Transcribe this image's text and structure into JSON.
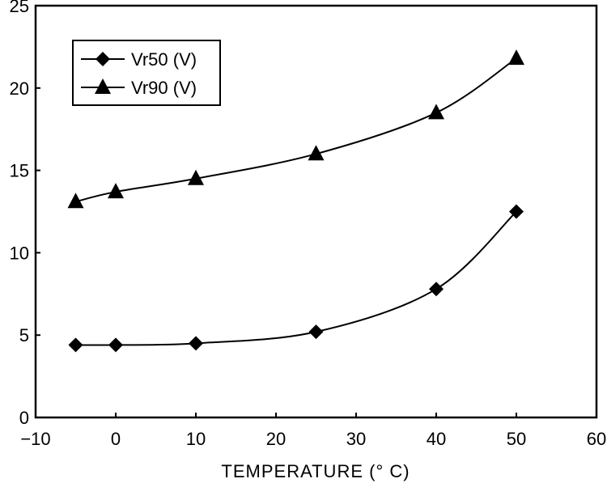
{
  "chart_data": {
    "type": "line",
    "title": "",
    "xlabel": "TEMPERATURE (° C)",
    "ylabel": "",
    "xlim": [
      -10,
      60
    ],
    "ylim": [
      0,
      25
    ],
    "xticks": [
      "−10",
      "0",
      "10",
      "20",
      "30",
      "40",
      "50",
      "60"
    ],
    "xtick_values": [
      -10,
      0,
      10,
      20,
      30,
      40,
      50,
      60
    ],
    "yticks": [
      "0",
      "5",
      "10",
      "15",
      "20",
      "25"
    ],
    "ytick_values": [
      0,
      5,
      10,
      15,
      20,
      25
    ],
    "grid": false,
    "legend_position": "top-left",
    "x": [
      -5,
      0,
      10,
      25,
      40,
      50
    ],
    "series": [
      {
        "name": "Vr50 (V)",
        "marker": "diamond",
        "values": [
          4.4,
          4.4,
          4.5,
          5.2,
          7.8,
          12.5
        ]
      },
      {
        "name": "Vr90 (V)",
        "marker": "triangle",
        "values": [
          13.1,
          13.7,
          14.5,
          16.0,
          18.5,
          21.8
        ]
      }
    ]
  }
}
